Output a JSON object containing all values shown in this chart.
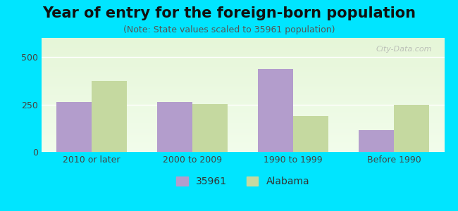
{
  "title": "Year of entry for the foreign-born population",
  "subtitle": "(Note: State values scaled to 35961 population)",
  "categories": [
    "2010 or later",
    "2000 to 2009",
    "1990 to 1999",
    "Before 1990"
  ],
  "series_35961": [
    263,
    263,
    438,
    113
  ],
  "series_alabama": [
    375,
    253,
    188,
    250
  ],
  "bar_color_35961": "#b39dcc",
  "bar_color_alabama": "#c5d9a0",
  "background_color": "#00e5ff",
  "plot_bg_gradient_top": "#f0fff0",
  "plot_bg_gradient_bottom": "#ffffff",
  "ylim": [
    0,
    600
  ],
  "yticks": [
    0,
    250,
    500
  ],
  "legend_label_1": "35961",
  "legend_label_2": "Alabama",
  "bar_width": 0.35,
  "title_fontsize": 15,
  "subtitle_fontsize": 9,
  "tick_fontsize": 9,
  "legend_fontsize": 10
}
